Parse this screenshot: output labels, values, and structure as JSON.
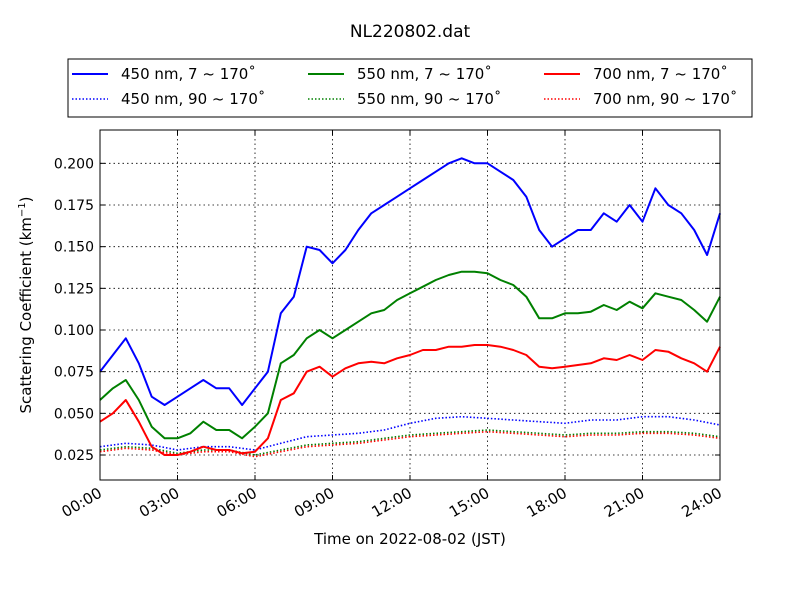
{
  "chart_data": {
    "type": "line",
    "title": "NL220802.dat",
    "xlabel": "Time on 2022-08-02 (JST)",
    "ylabel_main": "Scattering Coefficient (km",
    "ylabel_sup": "−1",
    "ylabel_end": ")",
    "xlim": [
      0,
      24
    ],
    "ylim": [
      0.01,
      0.22
    ],
    "x_ticks": [
      0,
      3,
      6,
      9,
      12,
      15,
      18,
      21,
      24
    ],
    "x_tick_labels": [
      "00:00",
      "03:00",
      "06:00",
      "09:00",
      "12:00",
      "15:00",
      "18:00",
      "21:00",
      "24:00"
    ],
    "y_ticks": [
      0.025,
      0.05,
      0.075,
      0.1,
      0.125,
      0.15,
      0.175,
      0.2
    ],
    "y_tick_labels": [
      "0.025",
      "0.050",
      "0.075",
      "0.100",
      "0.125",
      "0.150",
      "0.175",
      "0.200"
    ],
    "grid": true,
    "legend_position": "top",
    "series": [
      {
        "name": "450 nm, 7 ~ 170˚",
        "color": "#0000ff",
        "style": "solid",
        "x": [
          0,
          0.5,
          1,
          1.5,
          2,
          2.5,
          3,
          3.5,
          4,
          4.5,
          5,
          5.5,
          6,
          6.5,
          7,
          7.5,
          8,
          8.5,
          9,
          9.5,
          10,
          10.5,
          11,
          11.5,
          12,
          12.5,
          13,
          13.5,
          14,
          14.5,
          15,
          15.5,
          16,
          16.5,
          17,
          17.5,
          18,
          18.5,
          19,
          19.5,
          20,
          20.5,
          21,
          21.5,
          22,
          22.5,
          23,
          23.5,
          24
        ],
        "values": [
          0.075,
          0.085,
          0.095,
          0.08,
          0.06,
          0.055,
          0.06,
          0.065,
          0.07,
          0.065,
          0.065,
          0.055,
          0.065,
          0.075,
          0.11,
          0.12,
          0.15,
          0.148,
          0.14,
          0.148,
          0.16,
          0.17,
          0.175,
          0.18,
          0.185,
          0.19,
          0.195,
          0.2,
          0.203,
          0.2,
          0.2,
          0.195,
          0.19,
          0.18,
          0.16,
          0.15,
          0.155,
          0.16,
          0.16,
          0.17,
          0.165,
          0.175,
          0.165,
          0.185,
          0.175,
          0.17,
          0.16,
          0.145,
          0.17
        ]
      },
      {
        "name": "450 nm, 90 ~ 170˚",
        "color": "#0000ff",
        "style": "dotted",
        "x": [
          0,
          1,
          2,
          3,
          4,
          5,
          6,
          7,
          8,
          9,
          10,
          11,
          12,
          13,
          14,
          15,
          16,
          17,
          18,
          19,
          20,
          21,
          22,
          23,
          24
        ],
        "values": [
          0.03,
          0.032,
          0.031,
          0.028,
          0.03,
          0.03,
          0.028,
          0.032,
          0.036,
          0.037,
          0.038,
          0.04,
          0.044,
          0.047,
          0.048,
          0.047,
          0.046,
          0.045,
          0.044,
          0.046,
          0.046,
          0.048,
          0.048,
          0.046,
          0.043
        ]
      },
      {
        "name": "550 nm, 7 ~ 170˚",
        "color": "#008000",
        "style": "solid",
        "x": [
          0,
          0.5,
          1,
          1.5,
          2,
          2.5,
          3,
          3.5,
          4,
          4.5,
          5,
          5.5,
          6,
          6.5,
          7,
          7.5,
          8,
          8.5,
          9,
          9.5,
          10,
          10.5,
          11,
          11.5,
          12,
          12.5,
          13,
          13.5,
          14,
          14.5,
          15,
          15.5,
          16,
          16.5,
          17,
          17.5,
          18,
          18.5,
          19,
          19.5,
          20,
          20.5,
          21,
          21.5,
          22,
          22.5,
          23,
          23.5,
          24
        ],
        "values": [
          0.058,
          0.065,
          0.07,
          0.058,
          0.042,
          0.035,
          0.035,
          0.038,
          0.045,
          0.04,
          0.04,
          0.035,
          0.042,
          0.05,
          0.08,
          0.085,
          0.095,
          0.1,
          0.095,
          0.1,
          0.105,
          0.11,
          0.112,
          0.118,
          0.122,
          0.126,
          0.13,
          0.133,
          0.135,
          0.135,
          0.134,
          0.13,
          0.127,
          0.12,
          0.107,
          0.107,
          0.11,
          0.11,
          0.111,
          0.115,
          0.112,
          0.117,
          0.113,
          0.122,
          0.12,
          0.118,
          0.112,
          0.105,
          0.12
        ]
      },
      {
        "name": "550 nm, 90 ~ 170˚",
        "color": "#008000",
        "style": "dotted",
        "x": [
          0,
          1,
          2,
          3,
          4,
          5,
          6,
          7,
          8,
          9,
          10,
          11,
          12,
          13,
          14,
          15,
          16,
          17,
          18,
          19,
          20,
          21,
          22,
          23,
          24
        ],
        "values": [
          0.028,
          0.03,
          0.029,
          0.026,
          0.028,
          0.028,
          0.025,
          0.028,
          0.031,
          0.032,
          0.033,
          0.035,
          0.037,
          0.038,
          0.039,
          0.04,
          0.039,
          0.038,
          0.037,
          0.038,
          0.038,
          0.039,
          0.039,
          0.038,
          0.036
        ]
      },
      {
        "name": "700 nm, 7 ~ 170˚",
        "color": "#ff0000",
        "style": "solid",
        "x": [
          0,
          0.5,
          1,
          1.5,
          2,
          2.5,
          3,
          3.5,
          4,
          4.5,
          5,
          5.5,
          6,
          6.5,
          7,
          7.5,
          8,
          8.5,
          9,
          9.5,
          10,
          10.5,
          11,
          11.5,
          12,
          12.5,
          13,
          13.5,
          14,
          14.5,
          15,
          15.5,
          16,
          16.5,
          17,
          17.5,
          18,
          18.5,
          19,
          19.5,
          20,
          20.5,
          21,
          21.5,
          22,
          22.5,
          23,
          23.5,
          24
        ],
        "values": [
          0.045,
          0.05,
          0.058,
          0.045,
          0.03,
          0.025,
          0.025,
          0.027,
          0.03,
          0.028,
          0.028,
          0.026,
          0.027,
          0.035,
          0.058,
          0.062,
          0.075,
          0.078,
          0.072,
          0.077,
          0.08,
          0.081,
          0.08,
          0.083,
          0.085,
          0.088,
          0.088,
          0.09,
          0.09,
          0.091,
          0.091,
          0.09,
          0.088,
          0.085,
          0.078,
          0.077,
          0.078,
          0.079,
          0.08,
          0.083,
          0.082,
          0.085,
          0.082,
          0.088,
          0.087,
          0.083,
          0.08,
          0.075,
          0.09
        ]
      },
      {
        "name": "700 nm, 90 ~ 170˚",
        "color": "#ff0000",
        "style": "dotted",
        "x": [
          0,
          1,
          2,
          3,
          4,
          5,
          6,
          7,
          8,
          9,
          10,
          11,
          12,
          13,
          14,
          15,
          16,
          17,
          18,
          19,
          20,
          21,
          22,
          23,
          24
        ],
        "values": [
          0.027,
          0.029,
          0.028,
          0.025,
          0.027,
          0.027,
          0.024,
          0.027,
          0.03,
          0.031,
          0.032,
          0.034,
          0.036,
          0.037,
          0.038,
          0.039,
          0.038,
          0.037,
          0.036,
          0.037,
          0.037,
          0.038,
          0.038,
          0.037,
          0.035
        ]
      }
    ]
  }
}
